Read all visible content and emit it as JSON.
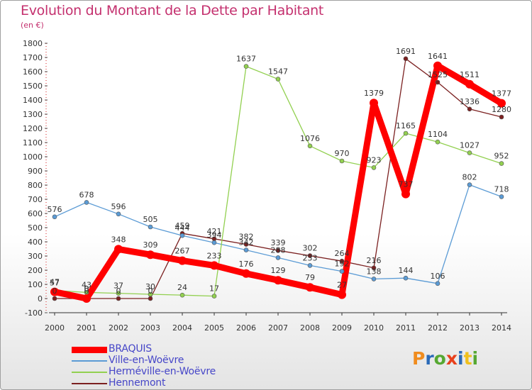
{
  "title": "Evolution du Montant de la Dette par Habitant",
  "subtitle": "(en €)",
  "logo": {
    "text": "Proxiti",
    "colors": [
      "#f08c1e",
      "#2a6ab8",
      "#56a832",
      "#e8401c",
      "#2a6ab8",
      "#f0c01e",
      "#56a832"
    ]
  },
  "chart_data": {
    "type": "line",
    "title": "Evolution du Montant de la Dette par Habitant",
    "subtitle": "(en €)",
    "x": [
      2000,
      2001,
      2002,
      2003,
      2004,
      2005,
      2006,
      2007,
      2008,
      2009,
      2010,
      2011,
      2012,
      2013,
      2014
    ],
    "ylim": [
      -100,
      1800
    ],
    "yticks": [
      -100,
      0,
      100,
      200,
      300,
      400,
      500,
      600,
      700,
      800,
      900,
      1000,
      1100,
      1200,
      1300,
      1400,
      1500,
      1600,
      1700,
      1800
    ],
    "grid": false,
    "legend_position": "bottom-left",
    "series": [
      {
        "name": "BRAQUIS",
        "color": "#ff0000",
        "values": [
          47,
          0,
          348,
          309,
          267,
          233,
          176,
          129,
          79,
          27,
          1379,
          737,
          1641,
          1511,
          1377
        ]
      },
      {
        "name": "Ville-en-Woëvre",
        "color": "#5b9bd5",
        "values": [
          576,
          678,
          596,
          505,
          444,
          394,
          342,
          288,
          233,
          192,
          138,
          144,
          106,
          802,
          718
        ]
      },
      {
        "name": "Herméville-en-Woëvre",
        "color": "#92d050",
        "values": [
          57,
          43,
          37,
          30,
          24,
          17,
          1637,
          1547,
          1076,
          970,
          923,
          1165,
          1104,
          1027,
          952
        ]
      },
      {
        "name": "Hennemont",
        "color": "#7b2020",
        "values": [
          0,
          0,
          0,
          0,
          459,
          421,
          382,
          339,
          302,
          264,
          216,
          1691,
          1525,
          1336,
          1280
        ]
      }
    ]
  }
}
